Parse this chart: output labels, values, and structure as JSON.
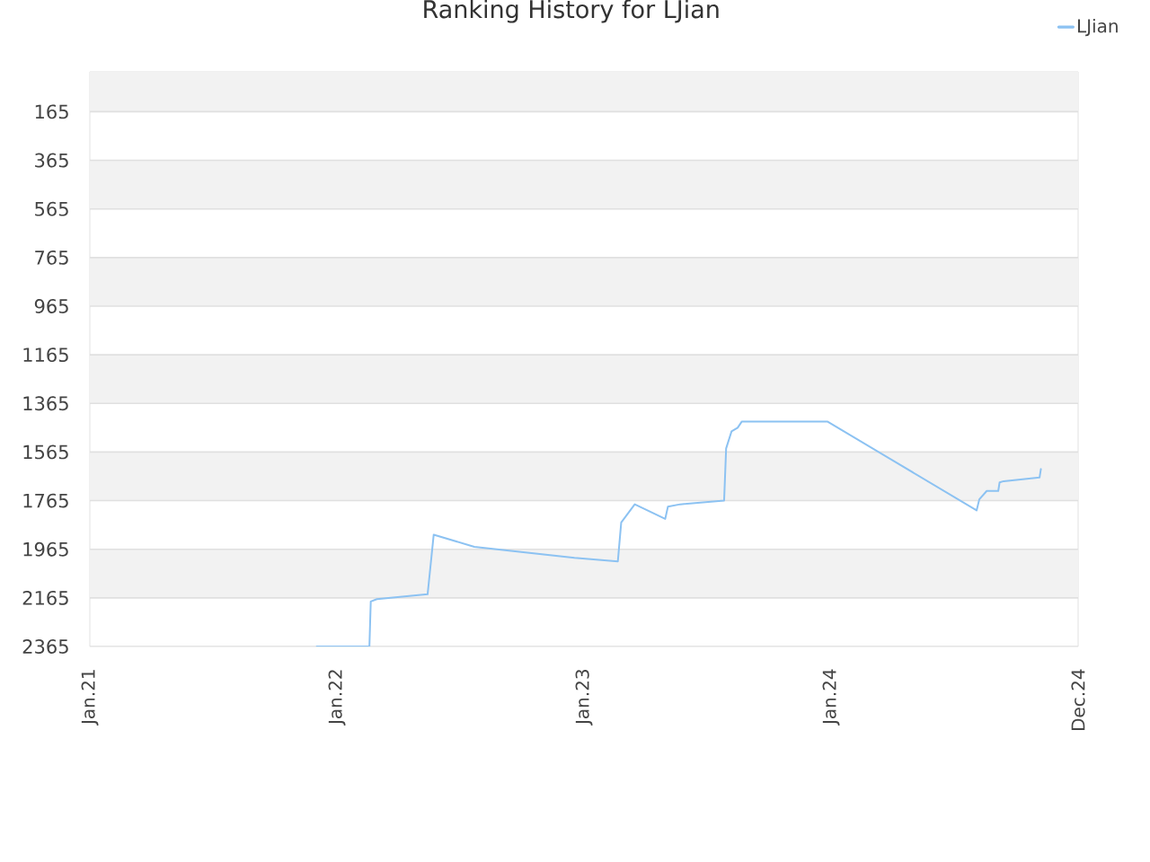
{
  "chart_data": {
    "type": "line",
    "title": "Ranking History for LJian",
    "x": [
      "2021-12-02",
      "2022-02-18",
      "2022-02-20",
      "2022-03-01",
      "2022-05-15",
      "2022-05-24",
      "2022-07-23",
      "2022-12-18",
      "2023-02-20",
      "2023-02-25",
      "2023-03-17",
      "2023-05-01",
      "2023-05-05",
      "2023-05-23",
      "2023-07-27",
      "2023-07-30",
      "2023-08-07",
      "2023-08-16",
      "2023-08-22",
      "2023-12-27",
      "2024-08-03",
      "2024-08-07",
      "2024-08-18",
      "2024-09-04",
      "2024-09-06",
      "2024-09-12",
      "2024-11-04",
      "2024-11-06"
    ],
    "series": [
      {
        "name": "LJian",
        "color": "#8cc2f2",
        "values": [
          2365,
          2365,
          2180,
          2170,
          2150,
          1905,
          1955,
          2000,
          2015,
          1855,
          1780,
          1840,
          1790,
          1780,
          1765,
          1550,
          1480,
          1465,
          1440,
          1440,
          1805,
          1760,
          1725,
          1725,
          1690,
          1685,
          1670,
          1635
        ]
      }
    ],
    "xlim": [
      "2021-01-01",
      "2024-12-31"
    ],
    "xticks": [
      {
        "value": "2021-01-01",
        "label": "Jan.21"
      },
      {
        "value": "2022-01-01",
        "label": "Jan.22"
      },
      {
        "value": "2023-01-01",
        "label": "Jan.23"
      },
      {
        "value": "2024-01-01",
        "label": "Jan.24"
      },
      {
        "value": "2024-12-31",
        "label": "Dec.24"
      }
    ],
    "ylim": [
      2365,
      1
    ],
    "yticks": [
      165,
      365,
      565,
      765,
      965,
      1165,
      1365,
      1565,
      1765,
      1965,
      2165,
      2365
    ],
    "grid": "y",
    "legend": "top right",
    "marker": "none",
    "line_style": "solid"
  }
}
